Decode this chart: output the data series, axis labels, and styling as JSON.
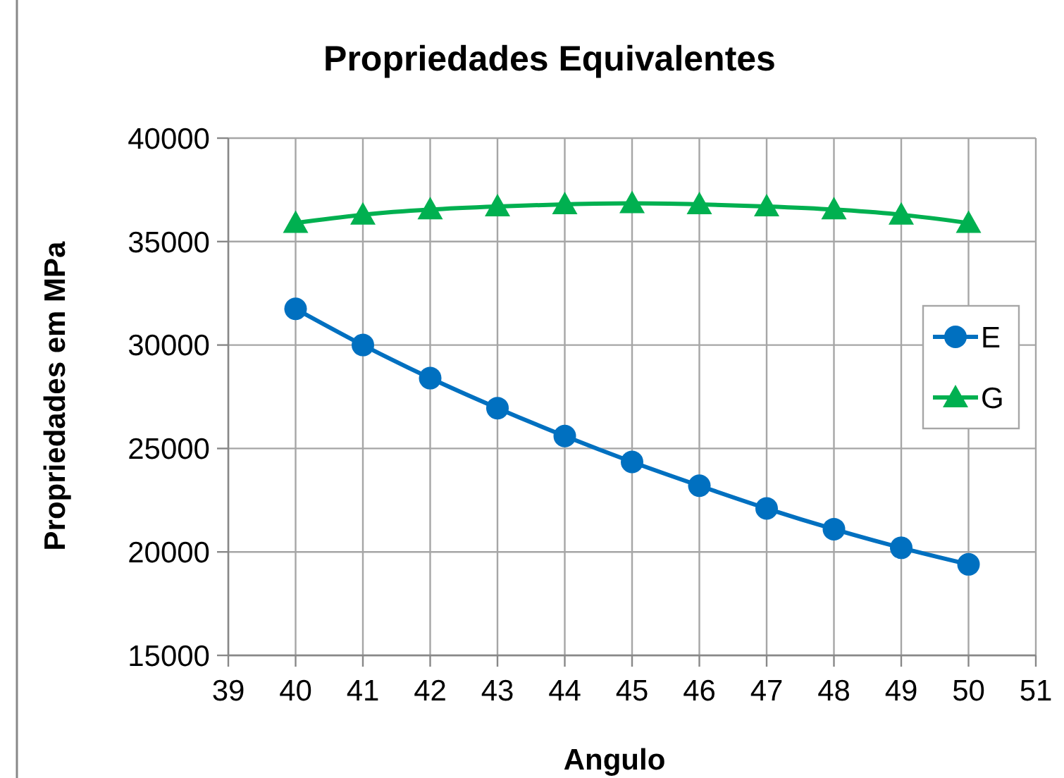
{
  "chart_data": {
    "type": "line",
    "title": "Propriedades Equivalentes",
    "xlabel": "Angulo",
    "ylabel": "Propriedades em MPa",
    "x": [
      40,
      41,
      42,
      43,
      44,
      45,
      46,
      47,
      48,
      49,
      50
    ],
    "series": [
      {
        "name": "E",
        "color": "#0070c0",
        "marker": "circle",
        "values": [
          31750,
          30000,
          28400,
          26950,
          25600,
          24350,
          23200,
          22100,
          21100,
          20200,
          19400
        ]
      },
      {
        "name": "G",
        "color": "#00b050",
        "marker": "triangle",
        "values": [
          35900,
          36300,
          36550,
          36700,
          36800,
          36850,
          36800,
          36700,
          36550,
          36300,
          35900
        ]
      }
    ],
    "xlim": [
      39,
      51
    ],
    "xticks": [
      39,
      40,
      41,
      42,
      43,
      44,
      45,
      46,
      47,
      48,
      49,
      50,
      51
    ],
    "ylim": [
      15000,
      40000
    ],
    "yticks": [
      15000,
      20000,
      25000,
      30000,
      35000,
      40000
    ],
    "grid": true,
    "legend": "right",
    "line_style": "solid"
  }
}
